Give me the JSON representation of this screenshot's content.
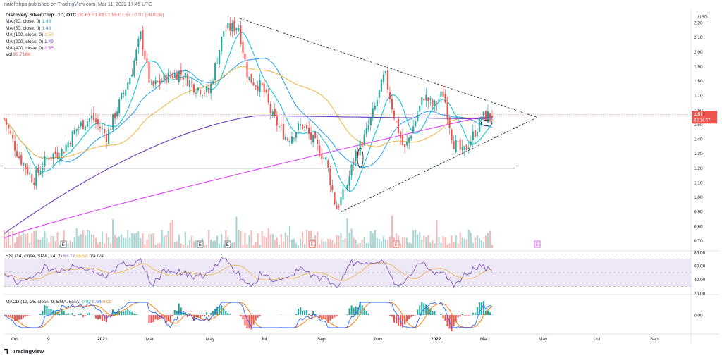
{
  "header": {
    "published_text": "natefishpa published on TradingView.com, Mar 11, 2022 17:45 UTC"
  },
  "symbol": {
    "title": "Discovery Silver Corp., 1D, OTC",
    "open": "O1.63",
    "high": "H1.63",
    "low": "L1.55",
    "close": "C1.57",
    "change": "−0.01 (−0.81%)"
  },
  "indicators": [
    {
      "label": "MA (20, close, 0)",
      "value": "1.49",
      "color": "#00bcd4"
    },
    {
      "label": "MA (50, close, 0)",
      "value": "1.48",
      "color": "#2196f3"
    },
    {
      "label": "MA (100, close, 0)",
      "value": "1.50",
      "color": "#f2b33d"
    },
    {
      "label": "MA (200, close, 0)",
      "value": "1.49",
      "color": "#673ab7"
    },
    {
      "label": "MA (400, close, 0)",
      "value": "1.55",
      "color": "#e040fb"
    },
    {
      "label": "Vol",
      "value": "83.716K",
      "color": "#ef5350"
    }
  ],
  "rsi_legend": {
    "label": "RSI (14, close, SMA, 14, 2)",
    "v1": "57.77",
    "v2": "56.66",
    "v3": "n/a",
    "v4": "n/a"
  },
  "macd_legend": {
    "label": "MACD (12, 26, close, 9, EMA, EMA)",
    "v1": "0.02",
    "v2": "0.04",
    "v3": "0.02"
  },
  "currency": "USD",
  "price_tag": {
    "value": "1.57",
    "countdown": "03:14:07"
  },
  "footer": {
    "brand": "TradingView"
  },
  "colors": {
    "up": "#26a69a",
    "down": "#ef5350",
    "rsi": "#7e57c2",
    "rsi_ma": "#f2b33d",
    "macd": "#2962ff",
    "signal": "#ff6d00"
  },
  "chart_data": {
    "type": "candlestick",
    "x_ticks": [
      "Oct",
      "9",
      "2021",
      "Mar",
      "May",
      "Jul",
      "Sep",
      "Nov",
      "2022",
      "Mar",
      "May",
      "Jul",
      "Sep"
    ],
    "y_ticks": [
      "2.20",
      "2.10",
      "2.00",
      "1.90",
      "1.80",
      "1.70",
      "1.60",
      "1.50",
      "1.40",
      "1.30",
      "1.20",
      "1.10",
      "1.00",
      "0.90",
      "0.80",
      "0.70"
    ],
    "ylim": [
      0.65,
      2.25
    ],
    "rsi_ticks": [
      "80.00",
      "60.00",
      "40.00",
      "20.00"
    ],
    "macd_ticks": [
      "0.00"
    ],
    "earnings_markers": [
      "E",
      "E",
      "E",
      "E",
      "E",
      "E",
      "E"
    ],
    "support_level": 1.2,
    "triangle": {
      "upper_start": 2.23,
      "apex": 1.55,
      "lower_start": 0.9
    },
    "close_path": [
      {
        "t": 0,
        "v": 1.54
      },
      {
        "t": 0.03,
        "v": 1.28
      },
      {
        "t": 0.06,
        "v": 1.12
      },
      {
        "t": 0.09,
        "v": 1.28
      },
      {
        "t": 0.12,
        "v": 1.32
      },
      {
        "t": 0.15,
        "v": 1.48
      },
      {
        "t": 0.18,
        "v": 1.55
      },
      {
        "t": 0.21,
        "v": 1.42
      },
      {
        "t": 0.24,
        "v": 1.68
      },
      {
        "t": 0.26,
        "v": 1.85
      },
      {
        "t": 0.28,
        "v": 2.12
      },
      {
        "t": 0.3,
        "v": 1.75
      },
      {
        "t": 0.33,
        "v": 1.82
      },
      {
        "t": 0.36,
        "v": 1.86
      },
      {
        "t": 0.39,
        "v": 1.76
      },
      {
        "t": 0.42,
        "v": 1.72
      },
      {
        "t": 0.45,
        "v": 2.15
      },
      {
        "t": 0.48,
        "v": 2.18
      },
      {
        "t": 0.5,
        "v": 1.82
      },
      {
        "t": 0.53,
        "v": 1.75
      },
      {
        "t": 0.55,
        "v": 1.55
      },
      {
        "t": 0.58,
        "v": 1.4
      },
      {
        "t": 0.61,
        "v": 1.5
      },
      {
        "t": 0.64,
        "v": 1.35
      },
      {
        "t": 0.66,
        "v": 1.25
      },
      {
        "t": 0.68,
        "v": 0.92
      },
      {
        "t": 0.7,
        "v": 1.05
      },
      {
        "t": 0.72,
        "v": 1.3
      },
      {
        "t": 0.74,
        "v": 1.42
      },
      {
        "t": 0.76,
        "v": 1.62
      },
      {
        "t": 0.78,
        "v": 1.85
      },
      {
        "t": 0.8,
        "v": 1.55
      },
      {
        "t": 0.82,
        "v": 1.32
      },
      {
        "t": 0.84,
        "v": 1.5
      },
      {
        "t": 0.86,
        "v": 1.7
      },
      {
        "t": 0.88,
        "v": 1.62
      },
      {
        "t": 0.9,
        "v": 1.72
      },
      {
        "t": 0.92,
        "v": 1.38
      },
      {
        "t": 0.94,
        "v": 1.3
      },
      {
        "t": 0.96,
        "v": 1.42
      },
      {
        "t": 0.98,
        "v": 1.55
      },
      {
        "t": 1,
        "v": 1.57
      }
    ]
  }
}
